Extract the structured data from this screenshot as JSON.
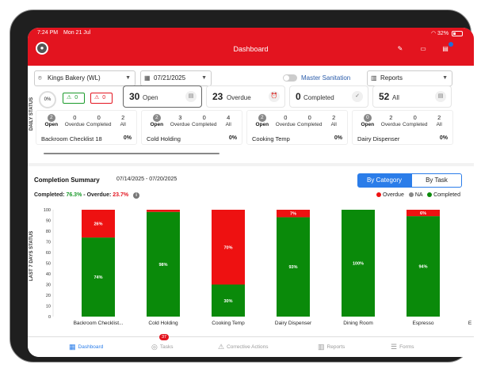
{
  "status_bar": {
    "time": "7:24 PM",
    "date": "Mon 21 Jul",
    "battery": "32%"
  },
  "header": {
    "title": "Dashboard"
  },
  "filters": {
    "store": "Kings Bakery (WL)",
    "date": "07/21/2025",
    "master_sanitation_label": "Master Sanitation",
    "reports_label": "Reports"
  },
  "daily_status": {
    "side_label": "DAILY STATUS",
    "percent": "0%",
    "green_count": "0",
    "red_count": "0",
    "cards": [
      {
        "num": "30",
        "label": "Open"
      },
      {
        "num": "23",
        "label": "Overdue"
      },
      {
        "num": "0",
        "label": "Completed"
      },
      {
        "num": "52",
        "label": "All"
      }
    ],
    "column_labels": [
      "Open",
      "Overdue",
      "Completed",
      "All"
    ],
    "checklists": [
      {
        "name": "Backroom Checklist 18",
        "open": "2",
        "overdue": "0",
        "completed": "0",
        "all": "2",
        "pct": "0%"
      },
      {
        "name": "Cold Holding",
        "open": "2",
        "overdue": "3",
        "completed": "0",
        "all": "4",
        "pct": "0%"
      },
      {
        "name": "Cooking Temp",
        "open": "2",
        "overdue": "0",
        "completed": "0",
        "all": "2",
        "pct": "0%"
      },
      {
        "name": "Dairy Dispenser",
        "open": "0",
        "overdue": "2",
        "completed": "0",
        "all": "2",
        "pct": "0%"
      }
    ]
  },
  "completion_summary": {
    "title": "Completion Summary",
    "range": "07/14/2025 - 07/20/2025",
    "tab_category": "By Category",
    "tab_task": "By Task",
    "completed_label": "Completed:",
    "completed_value": "76.3%",
    "separator": "-",
    "overdue_label": "Overdue:",
    "overdue_value": "23.7%",
    "side_label": "LAST 7 DAYS STATUS",
    "legend": [
      "Overdue",
      "NA",
      "Completed"
    ]
  },
  "colors": {
    "brand": "#e3141f",
    "accent": "#2b7de9",
    "completed": "#0a8a0a",
    "overdue": "#ee1111",
    "na": "#888888"
  },
  "chart_data": {
    "type": "bar",
    "stacked": true,
    "categories": [
      "Backroom Checklist...",
      "Cold Holding",
      "Cooking Temp",
      "Dairy Dispenser",
      "Dining Room",
      "Espresso",
      "E"
    ],
    "series": [
      {
        "name": "Completed",
        "values": [
          74,
          98,
          30,
          93,
          100,
          94,
          null
        ],
        "labels": [
          "74%",
          "98%",
          "30%",
          "93%",
          "100%",
          "94%",
          ""
        ]
      },
      {
        "name": "Overdue",
        "values": [
          26,
          2,
          70,
          7,
          0,
          6,
          null
        ],
        "labels": [
          "26%",
          "",
          "70%",
          "7%",
          "",
          "6%",
          ""
        ]
      }
    ],
    "yticks": [
      0,
      10,
      20,
      30,
      40,
      50,
      60,
      70,
      80,
      90,
      100
    ],
    "ylim": [
      0,
      100
    ],
    "grid": false
  },
  "bottom_nav": {
    "items": [
      {
        "label": "Dashboard",
        "icon": "grid-icon"
      },
      {
        "label": "Tasks",
        "icon": "tasks-icon",
        "badge": "37"
      },
      {
        "label": "Corrective Actions",
        "icon": "warning-icon"
      },
      {
        "label": "Reports",
        "icon": "reports-icon"
      },
      {
        "label": "Forms",
        "icon": "forms-icon"
      }
    ]
  }
}
